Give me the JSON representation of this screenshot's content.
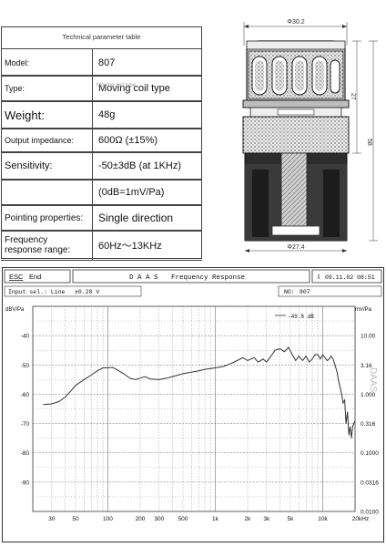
{
  "spec": {
    "title": "Technical parameter table",
    "rows": [
      {
        "key": "Model:",
        "value": "807"
      },
      {
        "key": "Type:",
        "value": "Moving coil type",
        "ghost": "Moving coil type"
      },
      {
        "key": "Weight:",
        "value": "48g"
      },
      {
        "key": "Output impedance:",
        "value": "600Ω  (±15%)"
      },
      {
        "key": "Sensitivity:",
        "value": "-50±3dB  (at 1KHz)"
      },
      {
        "key": "",
        "value": "(0dB=1mV/Pa)"
      },
      {
        "key": "Pointing properties:",
        "value": "Single direction"
      },
      {
        "key": "Frequency response range:",
        "key_lines": [
          "Frequency",
          "response range:"
        ],
        "value": "60Hz～13KHz"
      }
    ]
  },
  "drawing": {
    "top_dim": "Φ30.2",
    "bottom_dim": "Φ27.4",
    "right_dim_1": "27",
    "right_dim_2": "58"
  },
  "analyzer": {
    "esc_key": "ESC",
    "esc_label": "End",
    "brand": "D A A S",
    "title": "Frequency Response",
    "date_time": "09.11.02  08:51",
    "input_sel": "Input sel.: Line",
    "level": "±0.20  V",
    "no_label": "NO:",
    "no_value": "807",
    "marker": "-49.8 dB",
    "watermark": "DAAS"
  },
  "chart_data": {
    "type": "line",
    "ylabel_left": "dBV/Pa",
    "ylabel_right": "mV/Pa",
    "xlabel": "",
    "x_unit": "kHz",
    "ylim": [
      -100,
      -30
    ],
    "xlim": [
      20,
      20000
    ],
    "x_scale": "log",
    "grid": true,
    "y_ticks_left": [
      "-40",
      "-50",
      "-60",
      "-70",
      "-80",
      "-90"
    ],
    "y_ticks_right": [
      "10.00",
      "3.16",
      "1.000",
      "0.316",
      "0.1000",
      "0.0316",
      "0.0100"
    ],
    "x_ticks": [
      "30",
      "50",
      "100",
      "200",
      "300",
      "500",
      "1k",
      "2k",
      "3k",
      "5k",
      "10k",
      "20kHz"
    ],
    "series": [
      {
        "values_x": [
          25,
          30,
          35,
          40,
          45,
          50,
          60,
          70,
          80,
          90,
          100,
          110,
          120,
          140,
          160,
          180,
          200,
          220,
          250,
          300,
          350,
          400,
          500,
          600,
          700,
          800,
          1000,
          1200,
          1400,
          1600,
          1800,
          2000,
          2300,
          2500,
          2800,
          3000,
          3300,
          3600,
          4000,
          4400,
          4800,
          5200,
          5600,
          6000,
          6500,
          7000,
          7500,
          8000,
          8500,
          9000,
          9500,
          10000,
          10500,
          11000,
          11500,
          12000,
          12500,
          13000,
          13500,
          14000,
          15000,
          15500,
          16000,
          16500,
          17000,
          17500,
          18000,
          18500,
          19000,
          20000
        ],
        "values_y": [
          -63.5,
          -63.3,
          -62.5,
          -61,
          -59,
          -57,
          -55,
          -53.5,
          -52,
          -51,
          -51,
          -50.8,
          -51.5,
          -53,
          -54.5,
          -55,
          -54.5,
          -54,
          -54.8,
          -55,
          -54.5,
          -54,
          -53,
          -52.5,
          -52,
          -51.5,
          -51,
          -50.5,
          -49.5,
          -48.5,
          -47.5,
          -48.5,
          -47.5,
          -49,
          -48,
          -49,
          -47,
          -45,
          -44.5,
          -45.5,
          -44,
          -46.5,
          -48.5,
          -47,
          -48.5,
          -47,
          -49,
          -48,
          -46.5,
          -46.5,
          -48,
          -46.5,
          -47.5,
          -48.5,
          -48,
          -47,
          -48,
          -50,
          -52,
          -55,
          -60,
          -63,
          -62,
          -70,
          -66,
          -74,
          -71,
          -75,
          -71,
          -69
        ]
      }
    ]
  },
  "colors": {
    "frame": "#444444",
    "grid": "#9a9a9a",
    "curve": "#333333",
    "bg": "#ffffff"
  }
}
